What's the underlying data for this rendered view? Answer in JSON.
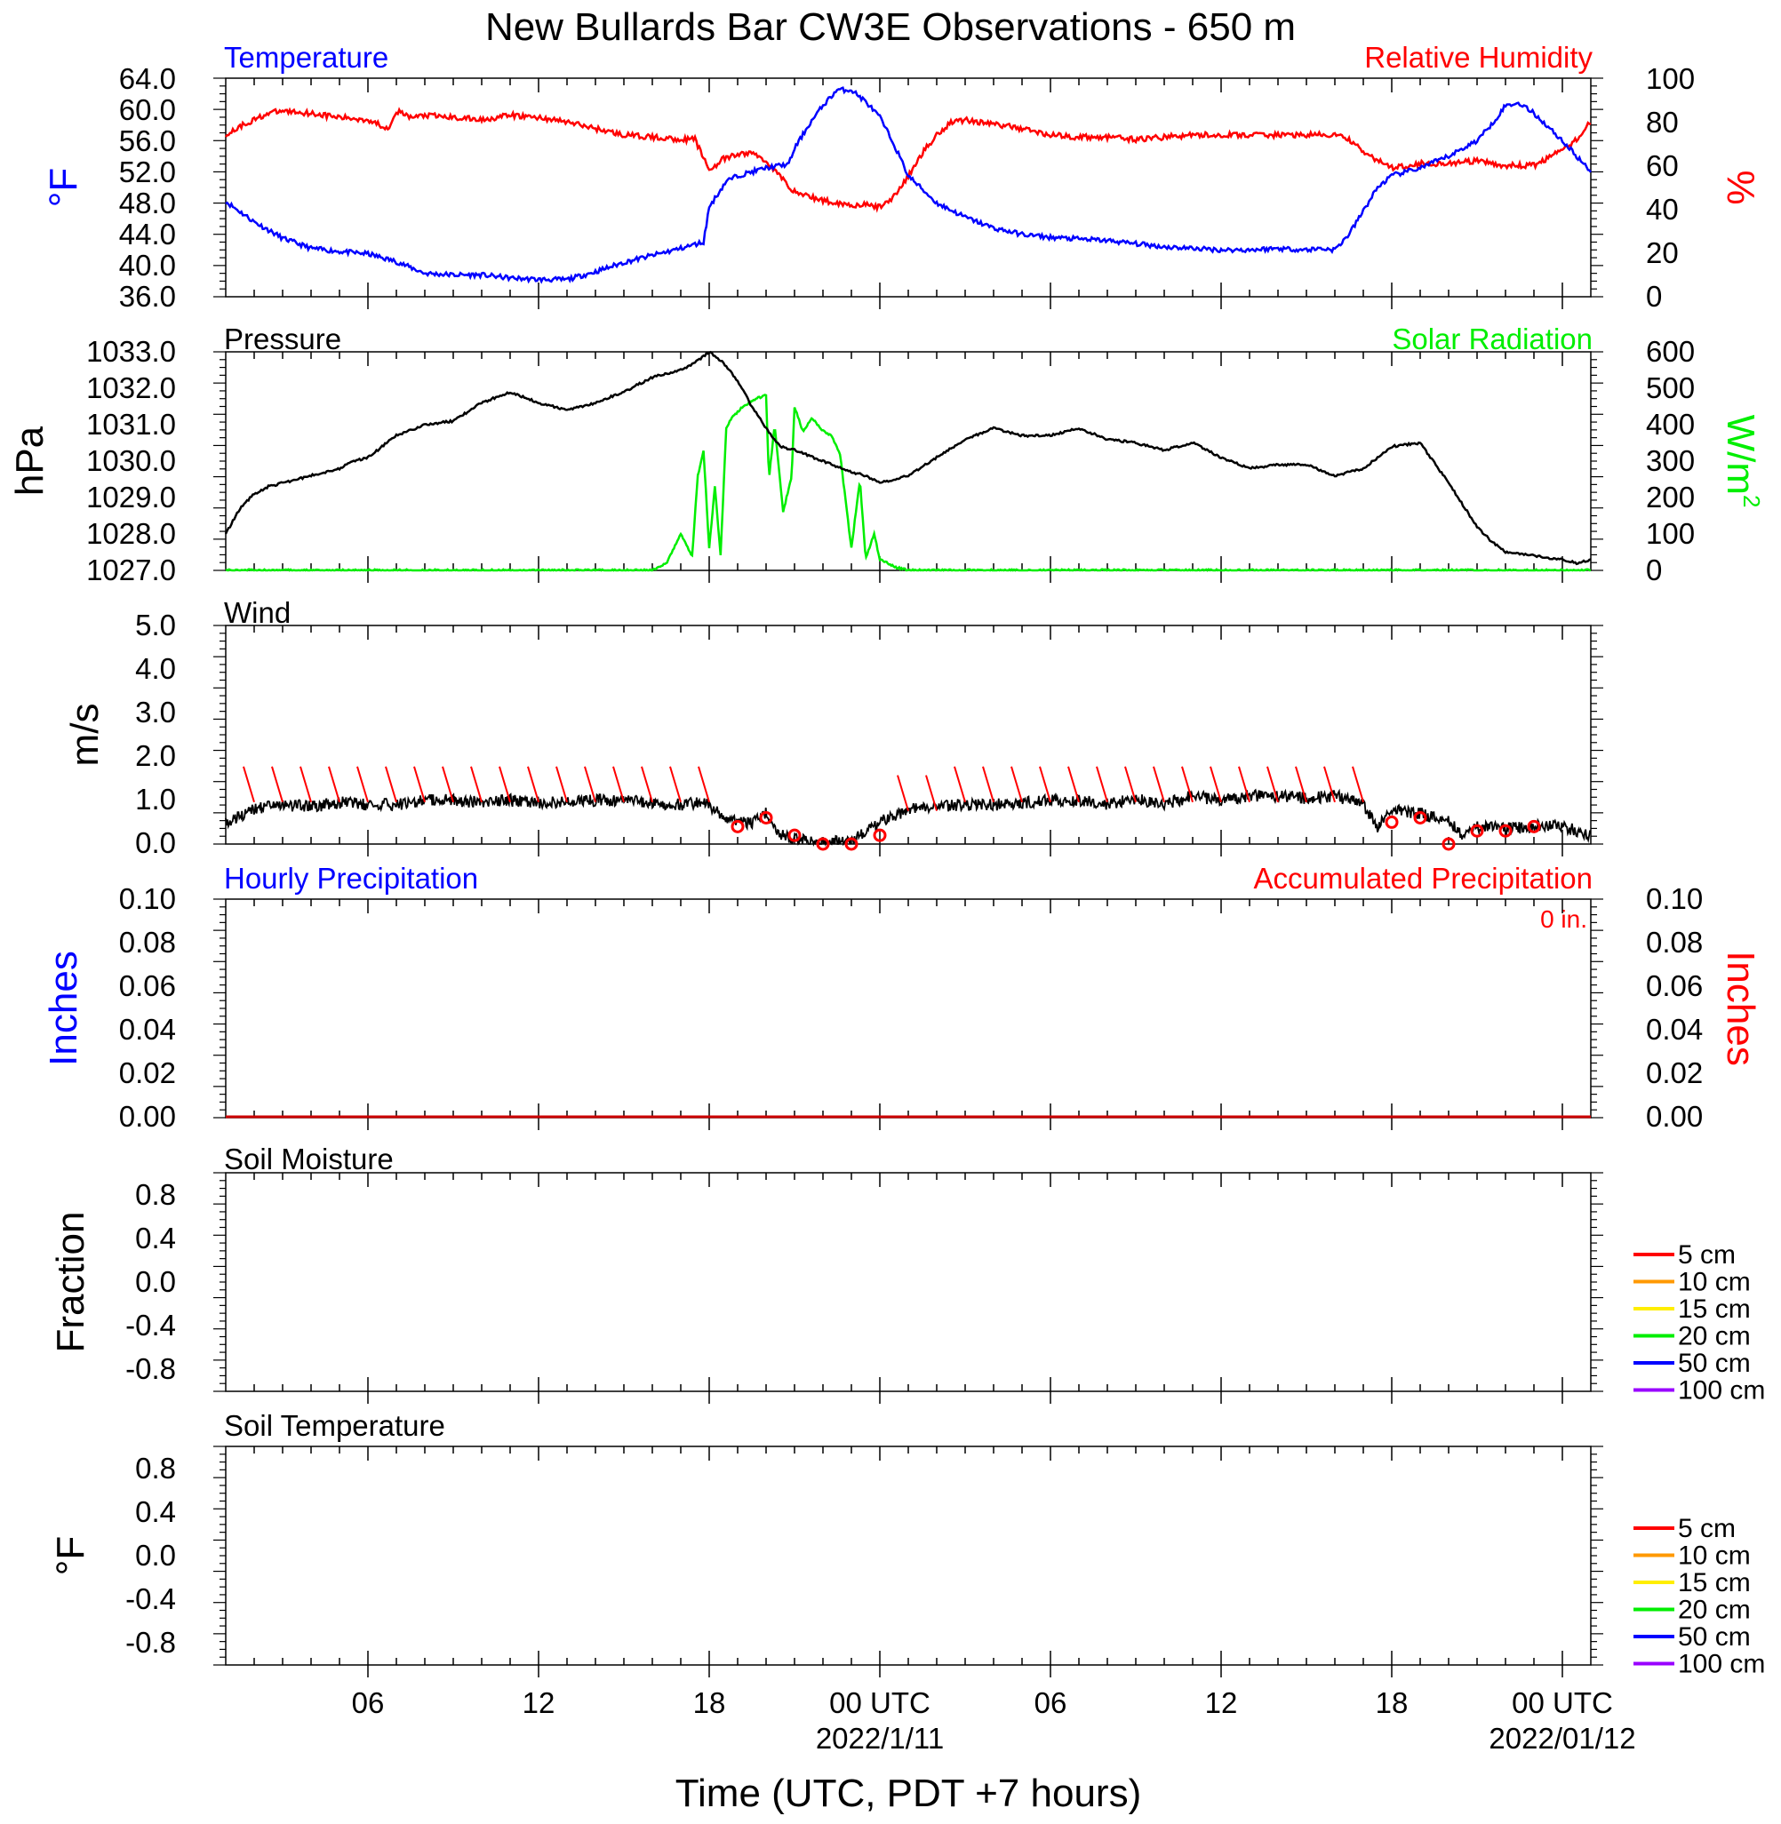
{
  "title": "New Bullards Bar CW3E Observations - 650 m",
  "colors": {
    "temperature": "#0000ff",
    "humidity": "#ff0000",
    "pressure": "#000000",
    "solar": "#00ee00",
    "wind": "#000000",
    "barb": "#ff0000",
    "precip_hourly": "#0000ff",
    "precip_accum": "#ff0000"
  },
  "x_axis": {
    "label": "Time (UTC, PDT +7 hours)",
    "range_hours": [
      1,
      49
    ],
    "ticks": [
      {
        "hour": 6,
        "label": "06"
      },
      {
        "hour": 12,
        "label": "12"
      },
      {
        "hour": 18,
        "label": "18"
      },
      {
        "hour": 24,
        "label": "00 UTC",
        "date": "2022/1/11"
      },
      {
        "hour": 30,
        "label": "06"
      },
      {
        "hour": 36,
        "label": "12"
      },
      {
        "hour": 42,
        "label": "18"
      },
      {
        "hour": 48,
        "label": "00 UTC",
        "date": "2022/01/12"
      }
    ]
  },
  "panels": {
    "temp_rh": {
      "left_title": "Temperature",
      "right_title": "Relative Humidity",
      "left_unit": "°F",
      "right_unit": "%",
      "left_ticks": [
        "64.0",
        "60.0",
        "56.0",
        "52.0",
        "48.0",
        "44.0",
        "40.0",
        "36.0"
      ],
      "right_ticks": [
        "100",
        "80",
        "60",
        "40",
        "20",
        "0"
      ]
    },
    "pressure_solar": {
      "left_title": "Pressure",
      "right_title": "Solar Radiation",
      "left_unit": "hPa",
      "right_unit": "W/m",
      "right_unit_sup": "2",
      "left_ticks": [
        "1033.0",
        "1032.0",
        "1031.0",
        "1030.0",
        "1029.0",
        "1028.0",
        "1027.0"
      ],
      "right_ticks": [
        "600",
        "500",
        "400",
        "300",
        "200",
        "100",
        "0"
      ]
    },
    "wind": {
      "left_title": "Wind",
      "left_unit": "m/s",
      "left_ticks": [
        "5.0",
        "4.0",
        "3.0",
        "2.0",
        "1.0",
        "0.0"
      ]
    },
    "precip": {
      "left_title": "Hourly Precipitation",
      "right_title": "Accumulated Precipitation",
      "total_label": "0 in.",
      "left_unit": "Inches",
      "right_unit": "Inches",
      "left_ticks": [
        "0.10",
        "0.08",
        "0.06",
        "0.04",
        "0.02",
        "0.00"
      ],
      "right_ticks": [
        "0.10",
        "0.08",
        "0.06",
        "0.04",
        "0.02",
        "0.00"
      ]
    },
    "soil_moisture": {
      "left_title": "Soil Moisture",
      "left_unit": "Fraction",
      "left_ticks": [
        "0.8",
        "0.4",
        "0.0",
        "-0.4",
        "-0.8"
      ]
    },
    "soil_temp": {
      "left_title": "Soil Temperature",
      "left_unit": "°F",
      "left_ticks": [
        "0.8",
        "0.4",
        "0.0",
        "-0.4",
        "-0.8"
      ]
    }
  },
  "legend": [
    {
      "label": "5 cm",
      "color": "#ff0000"
    },
    {
      "label": "10 cm",
      "color": "#ff9900"
    },
    {
      "label": "15 cm",
      "color": "#ffee00"
    },
    {
      "label": "20 cm",
      "color": "#00ee00"
    },
    {
      "label": "50 cm",
      "color": "#0000ff"
    },
    {
      "label": "100 cm",
      "color": "#9900ff"
    }
  ],
  "chart_data": [
    {
      "type": "line",
      "title": "Temperature",
      "ylabel": "°F",
      "ylim": [
        36,
        64
      ],
      "x": [
        1,
        2,
        3,
        4,
        5,
        6,
        7,
        8,
        9,
        10,
        11,
        12,
        13,
        14,
        15,
        16,
        17,
        17.8,
        18,
        18.6,
        19,
        20,
        20.8,
        21,
        21.5,
        22,
        22.5,
        23,
        23.5,
        24,
        24.5,
        25,
        26,
        27,
        28,
        29,
        30,
        31,
        32,
        33,
        34,
        35,
        36,
        37,
        38,
        39,
        39.5,
        40,
        40.5,
        41,
        41.5,
        42,
        43,
        44,
        45,
        45.6,
        46,
        46.5,
        47,
        48,
        49
      ],
      "series": [
        {
          "name": "Temperature",
          "values": [
            48.2,
            45.6,
            43.5,
            42.2,
            41.8,
            41.5,
            40.5,
            39.0,
            38.8,
            38.8,
            38.4,
            38.2,
            38.2,
            39.2,
            40.4,
            41.3,
            42.2,
            43.0,
            47.5,
            50.8,
            51.5,
            52.5,
            53.0,
            55.0,
            58.0,
            60.5,
            62.5,
            62.5,
            61.0,
            59.0,
            55.5,
            51.5,
            48.0,
            46.2,
            44.8,
            44.0,
            43.6,
            43.4,
            43.2,
            42.8,
            42.4,
            42.2,
            42.0,
            42.0,
            42.2,
            42.0,
            42.2,
            42.0,
            44.0,
            47.0,
            50.0,
            51.5,
            52.5,
            54.0,
            56.0,
            58.5,
            60.5,
            60.8,
            59.5,
            56.0,
            52.0
          ]
        }
      ]
    },
    {
      "type": "line",
      "title": "Relative Humidity",
      "ylabel": "%",
      "ylim": [
        0,
        100
      ],
      "x": [
        1,
        1.5,
        2,
        2.5,
        3,
        4,
        5,
        6,
        6.7,
        7,
        7.5,
        8,
        9,
        10,
        11,
        12,
        13,
        14,
        15,
        16,
        17,
        17.5,
        18,
        18.5,
        19,
        19.5,
        20,
        20.5,
        21,
        22,
        23,
        23.5,
        24,
        24.5,
        25,
        25.5,
        26,
        26.5,
        27,
        28,
        29,
        30,
        31,
        32,
        33,
        34,
        35,
        36,
        37,
        38,
        39,
        40,
        40.5,
        41,
        42,
        43,
        44,
        45,
        46,
        47,
        48,
        48.5,
        49
      ],
      "series": [
        {
          "name": "Relative Humidity",
          "values": [
            74,
            78,
            81,
            84,
            85,
            84,
            82,
            81,
            77,
            85,
            82,
            83,
            82,
            81,
            83,
            82,
            80,
            77,
            74,
            73,
            72,
            72,
            58,
            63,
            65,
            66,
            62,
            55,
            48,
            44,
            42,
            42,
            41,
            46,
            55,
            66,
            74,
            80,
            81,
            79,
            77,
            74,
            73,
            73,
            72,
            73,
            74,
            74,
            74,
            74,
            74,
            74,
            72,
            66,
            59,
            61,
            61,
            62,
            60,
            60,
            67,
            72,
            80
          ]
        }
      ]
    },
    {
      "type": "line",
      "title": "Pressure",
      "ylabel": "hPa",
      "ylim": [
        1027.0,
        1033.0
      ],
      "x": [
        1,
        1.5,
        2,
        2.5,
        3,
        4,
        5,
        5.5,
        6,
        6.5,
        7,
        8,
        9,
        10,
        11,
        12,
        13,
        14,
        15,
        16,
        17,
        17.5,
        18,
        18.5,
        19,
        19.5,
        20,
        20.5,
        21,
        22,
        23,
        23.5,
        24,
        25,
        26,
        27,
        28,
        29,
        30,
        31,
        32,
        33,
        34,
        35,
        36,
        37,
        38,
        39,
        40,
        41,
        42,
        43,
        44,
        45,
        45.5,
        46,
        47,
        48,
        48.5,
        49
      ],
      "series": [
        {
          "name": "Pressure",
          "values": [
            1028.0,
            1028.7,
            1029.1,
            1029.3,
            1029.4,
            1029.6,
            1029.8,
            1030.0,
            1030.1,
            1030.4,
            1030.7,
            1031.0,
            1031.1,
            1031.6,
            1031.9,
            1031.6,
            1031.4,
            1031.6,
            1031.9,
            1032.3,
            1032.5,
            1032.7,
            1033.0,
            1032.7,
            1032.2,
            1031.5,
            1030.9,
            1030.4,
            1030.3,
            1030.0,
            1029.7,
            1029.6,
            1029.4,
            1029.6,
            1030.1,
            1030.6,
            1030.9,
            1030.7,
            1030.7,
            1030.9,
            1030.6,
            1030.5,
            1030.3,
            1030.5,
            1030.1,
            1029.8,
            1029.9,
            1029.9,
            1029.6,
            1029.8,
            1030.4,
            1030.5,
            1029.4,
            1028.2,
            1027.8,
            1027.5,
            1027.4,
            1027.3,
            1027.2,
            1027.3
          ]
        }
      ]
    },
    {
      "type": "line",
      "title": "Solar Radiation",
      "ylabel": "W/m2",
      "ylim": [
        0,
        600
      ],
      "x": [
        1,
        15,
        16,
        16.5,
        17,
        17.4,
        17.6,
        17.8,
        18,
        18.2,
        18.4,
        18.6,
        18.8,
        19.2,
        19.6,
        20,
        20.1,
        20.3,
        20.6,
        20.9,
        21,
        21.3,
        21.6,
        21.9,
        22.3,
        22.6,
        23,
        23.3,
        23.5,
        23.8,
        24,
        24.5,
        25,
        49
      ],
      "series": [
        {
          "name": "Solar Radiation",
          "values": [
            0,
            0,
            0,
            20,
            100,
            40,
            260,
            330,
            60,
            230,
            40,
            390,
            420,
            450,
            470,
            480,
            250,
            400,
            160,
            260,
            450,
            380,
            420,
            390,
            370,
            320,
            60,
            250,
            30,
            100,
            30,
            10,
            0,
            0
          ]
        }
      ]
    },
    {
      "type": "line",
      "title": "Wind",
      "ylabel": "m/s",
      "ylim": [
        0,
        5
      ],
      "x": [
        1,
        2,
        3,
        4,
        5,
        6,
        7,
        8,
        9,
        10,
        11,
        12,
        13,
        14,
        15,
        16,
        17,
        17.5,
        18,
        18.5,
        19,
        19.5,
        20,
        20.5,
        21,
        22,
        23,
        23.5,
        24,
        25,
        26,
        27,
        28,
        29,
        30,
        31,
        32,
        33,
        34,
        35,
        36,
        37,
        38,
        39,
        40,
        41,
        41.5,
        42,
        43,
        44,
        44.5,
        45,
        46,
        47,
        48,
        49
      ],
      "series": [
        {
          "name": "Wind speed",
          "values": [
            0.5,
            0.8,
            0.9,
            0.85,
            0.95,
            0.9,
            0.9,
            1.0,
            1.0,
            0.95,
            1.0,
            0.95,
            0.95,
            1.0,
            1.0,
            0.95,
            0.9,
            0.95,
            0.9,
            0.6,
            0.5,
            0.5,
            0.7,
            0.2,
            0.1,
            0.05,
            0.05,
            0.3,
            0.5,
            0.8,
            0.85,
            0.9,
            0.9,
            0.95,
            1.0,
            1.0,
            0.9,
            1.05,
            0.9,
            1.1,
            1.0,
            1.1,
            1.1,
            1.05,
            1.1,
            0.9,
            0.4,
            0.8,
            0.7,
            0.5,
            0.2,
            0.4,
            0.35,
            0.4,
            0.4,
            0.2
          ]
        }
      ],
      "barbs": [
        {
          "x": 2.0,
          "speed": 1.0
        },
        {
          "x": 3.0,
          "speed": 1.0
        },
        {
          "x": 4.0,
          "speed": 1.0
        },
        {
          "x": 5.0,
          "speed": 1.0
        },
        {
          "x": 6.0,
          "speed": 1.0
        },
        {
          "x": 7.0,
          "speed": 1.0
        },
        {
          "x": 8.0,
          "speed": 1.0
        },
        {
          "x": 9.0,
          "speed": 1.0
        },
        {
          "x": 10.0,
          "speed": 1.0
        },
        {
          "x": 11.0,
          "speed": 1.0
        },
        {
          "x": 12.0,
          "speed": 1.0
        },
        {
          "x": 13.0,
          "speed": 1.0
        },
        {
          "x": 14.0,
          "speed": 1.0
        },
        {
          "x": 15.0,
          "speed": 1.0
        },
        {
          "x": 16.0,
          "speed": 1.0
        },
        {
          "x": 17.0,
          "speed": 1.0
        },
        {
          "x": 18.0,
          "speed": 1.0
        },
        {
          "x": 19.0,
          "speed": 0.4
        },
        {
          "x": 20.0,
          "speed": 0.6
        },
        {
          "x": 21.0,
          "speed": 0.2
        },
        {
          "x": 22.0,
          "speed": 0.0
        },
        {
          "x": 23.0,
          "speed": 0.0
        },
        {
          "x": 24.0,
          "speed": 0.2
        },
        {
          "x": 25.0,
          "speed": 0.8
        },
        {
          "x": 26.0,
          "speed": 0.8
        },
        {
          "x": 27.0,
          "speed": 1.0
        },
        {
          "x": 28.0,
          "speed": 1.0
        },
        {
          "x": 29.0,
          "speed": 1.0
        },
        {
          "x": 30.0,
          "speed": 1.0
        },
        {
          "x": 31.0,
          "speed": 1.0
        },
        {
          "x": 32.0,
          "speed": 1.0
        },
        {
          "x": 33.0,
          "speed": 1.0
        },
        {
          "x": 34.0,
          "speed": 1.0
        },
        {
          "x": 35.0,
          "speed": 1.0
        },
        {
          "x": 36.0,
          "speed": 1.0
        },
        {
          "x": 37.0,
          "speed": 1.0
        },
        {
          "x": 38.0,
          "speed": 1.0
        },
        {
          "x": 39.0,
          "speed": 1.0
        },
        {
          "x": 40.0,
          "speed": 1.0
        },
        {
          "x": 41.0,
          "speed": 1.0
        },
        {
          "x": 42.0,
          "speed": 0.5
        },
        {
          "x": 43.0,
          "speed": 0.6
        },
        {
          "x": 44.0,
          "speed": 0.0
        },
        {
          "x": 45.0,
          "speed": 0.3
        },
        {
          "x": 46.0,
          "speed": 0.3
        },
        {
          "x": 47.0,
          "speed": 0.4
        }
      ]
    },
    {
      "type": "line",
      "title": "Hourly Precipitation",
      "ylabel": "Inches",
      "ylim": [
        0,
        0.1
      ],
      "x": [
        1,
        49
      ],
      "series": [
        {
          "name": "Hourly Precipitation",
          "values": [
            0,
            0
          ]
        },
        {
          "name": "Accumulated Precipitation",
          "values": [
            0,
            0
          ]
        }
      ]
    },
    {
      "type": "line",
      "title": "Soil Moisture",
      "ylabel": "Fraction",
      "ylim": [
        -1,
        1
      ],
      "series": [
        {
          "name": "5 cm",
          "values": []
        },
        {
          "name": "10 cm",
          "values": []
        },
        {
          "name": "15 cm",
          "values": []
        },
        {
          "name": "20 cm",
          "values": []
        },
        {
          "name": "50 cm",
          "values": []
        },
        {
          "name": "100 cm",
          "values": []
        }
      ]
    },
    {
      "type": "line",
      "title": "Soil Temperature",
      "ylabel": "°F",
      "ylim": [
        -1,
        1
      ],
      "series": [
        {
          "name": "5 cm",
          "values": []
        },
        {
          "name": "10 cm",
          "values": []
        },
        {
          "name": "15 cm",
          "values": []
        },
        {
          "name": "20 cm",
          "values": []
        },
        {
          "name": "50 cm",
          "values": []
        },
        {
          "name": "100 cm",
          "values": []
        }
      ]
    }
  ]
}
